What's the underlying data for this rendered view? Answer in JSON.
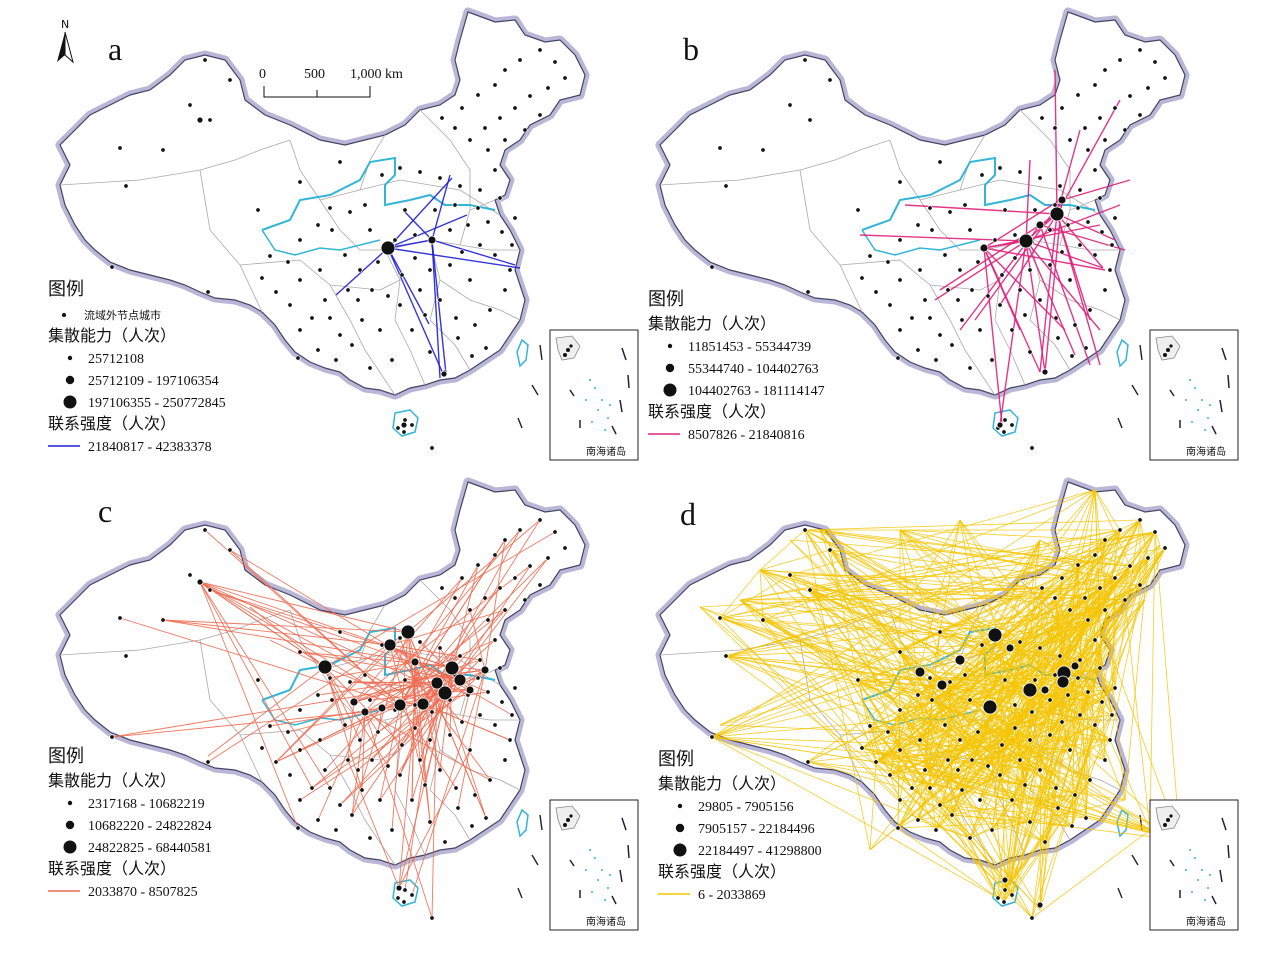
{
  "panels": [
    {
      "letter": "a",
      "line_color": "#1f1fd6",
      "legend": {
        "title": "图例",
        "outside_label": "流域外节点城市",
        "capacity_heading": "集散能力（人次）",
        "capacity_classes": [
          "25712108",
          "25712109 - 197106354",
          "197106355 - 250772845"
        ],
        "strength_heading": "联系强度（人次）",
        "strength_class": "21840817 - 42383378"
      }
    },
    {
      "letter": "b",
      "line_color": "#e0207a",
      "legend": {
        "title": "图例",
        "capacity_heading": "集散能力（人次）",
        "capacity_classes": [
          "11851453 - 55344739",
          "55344740 - 104402763",
          "104402763 - 181114147"
        ],
        "strength_heading": "联系强度（人次）",
        "strength_class": "8507826 - 21840816"
      }
    },
    {
      "letter": "c",
      "line_color": "#ee6a50",
      "legend": {
        "title": "图例",
        "capacity_heading": "集散能力（人次）",
        "capacity_classes": [
          "2317168 - 10682219",
          "10682220 - 24822824",
          "24822825 - 68440581"
        ],
        "strength_heading": "联系强度（人次）",
        "strength_class": "2033870 - 8507825"
      }
    },
    {
      "letter": "d",
      "line_color": "#f5c400",
      "legend": {
        "title": "图例",
        "capacity_heading": "集散能力（人次）",
        "capacity_classes": [
          "29805 - 7905156",
          "7905157 - 22184496",
          "22184497 - 41298800"
        ],
        "strength_heading": "联系强度（人次）",
        "strength_class": "6 - 2033869"
      }
    }
  ],
  "scale_bar": {
    "ticks": [
      "0",
      "500",
      "1,000 km"
    ]
  },
  "north_label": "N",
  "inset_label": "南海诸岛",
  "colors": {
    "boundary_halo": "#b9b6d6",
    "province_line": "#aaaaaa",
    "river": "#33b5d8",
    "node": "#111111"
  }
}
